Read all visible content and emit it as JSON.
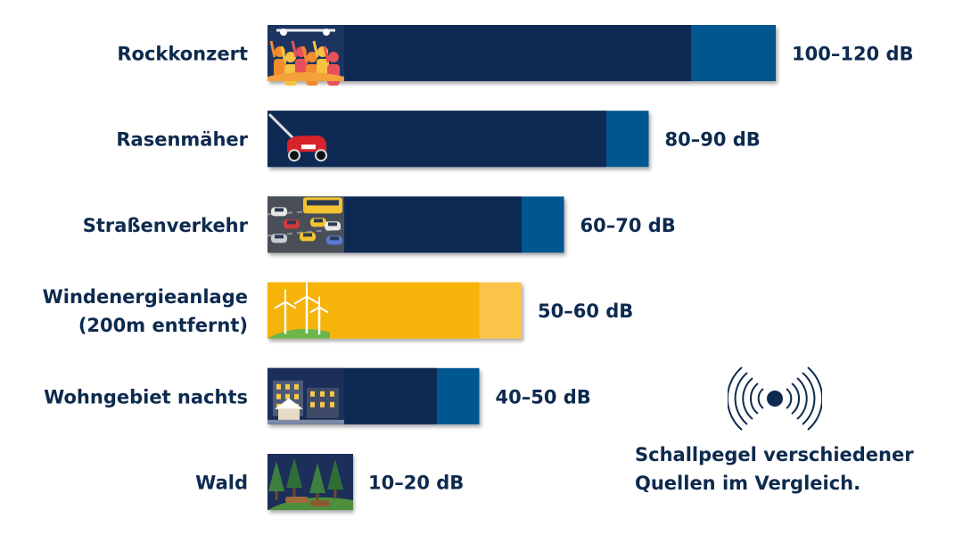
{
  "colors": {
    "dark_blue": "#0e2a54",
    "mid_blue": "#04578e",
    "yellow": "#f6b30a",
    "light_yellow": "#fac449",
    "text": "#0d2a4f",
    "background": "#ffffff"
  },
  "caption": {
    "line1": "Schallpegel verschiedener",
    "line2": "Quellen im Vergleich."
  },
  "icons": [
    "sound-waves-icon"
  ],
  "chart_data": {
    "type": "bar",
    "orientation": "horizontal",
    "unit": "dB",
    "xlim": [
      0,
      120
    ],
    "grid": false,
    "legend": "none",
    "categories": [
      {
        "label_lines": [
          "Rockkonzert"
        ],
        "min": 100,
        "max": 120,
        "value_label": "100–120 dB",
        "highlight": false,
        "image": "concert-crowd-icon"
      },
      {
        "label_lines": [
          "Rasenmäher"
        ],
        "min": 80,
        "max": 90,
        "value_label": "80–90 dB",
        "highlight": false,
        "image": "lawn-mower-icon"
      },
      {
        "label_lines": [
          "Straßenverkehr"
        ],
        "min": 60,
        "max": 70,
        "value_label": "60–70 dB",
        "highlight": false,
        "image": "traffic-icon"
      },
      {
        "label_lines": [
          "Windenergieanlage",
          "(200m entfernt)"
        ],
        "min": 50,
        "max": 60,
        "value_label": "50–60 dB",
        "highlight": true,
        "image": "wind-turbines-icon"
      },
      {
        "label_lines": [
          "Wohngebiet nachts"
        ],
        "min": 40,
        "max": 50,
        "value_label": "40–50 dB",
        "highlight": false,
        "image": "night-houses-icon"
      },
      {
        "label_lines": [
          "Wald"
        ],
        "min": 10,
        "max": 20,
        "value_label": "10–20 dB",
        "highlight": false,
        "image": "forest-icon"
      }
    ]
  }
}
